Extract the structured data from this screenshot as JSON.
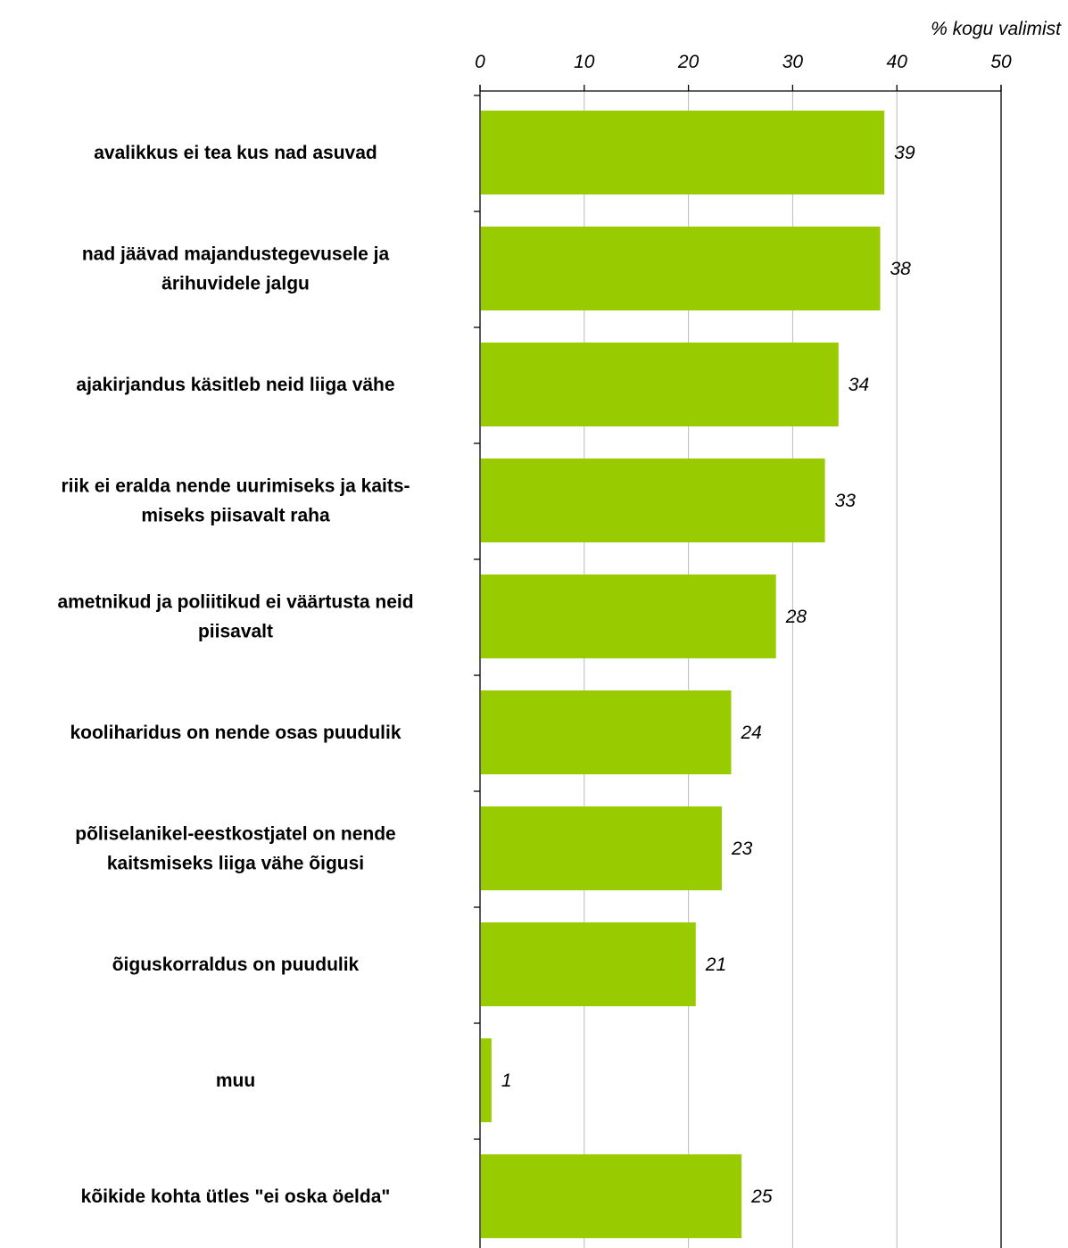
{
  "chart_data": {
    "type": "bar",
    "orientation": "horizontal",
    "title": "",
    "xlabel": "% kogu valimist",
    "ylabel": "",
    "xlim": [
      0,
      50
    ],
    "ticks": [
      0,
      10,
      20,
      30,
      40,
      50
    ],
    "tick_labels": [
      "0",
      "10",
      "20",
      "30",
      "40",
      "50"
    ],
    "grid": true,
    "axis_position": "top",
    "bar_color": "#99cc00",
    "categories": [
      [
        "avalikkus ei tea kus nad asuvad"
      ],
      [
        "nad jäävad majandustegevusele ja",
        "ärihuvidele jalgu"
      ],
      [
        "ajakirjandus käsitleb neid liiga vähe"
      ],
      [
        "riik ei eralda nende uurimiseks ja kaits-",
        "miseks piisavalt raha"
      ],
      [
        "ametnikud ja poliitikud ei väärtusta neid",
        "piisavalt"
      ],
      [
        "kooliharidus on nende osas puudulik"
      ],
      [
        "põliselanikel-eestkostjatel on nende",
        "kaitsmiseks liiga vähe õigusi"
      ],
      [
        "õiguskorraldus on puudulik"
      ],
      [
        "muu"
      ],
      [
        "kõikide kohta ütles \"ei oska öelda\""
      ]
    ],
    "values": [
      38.8,
      38.4,
      34.4,
      33.1,
      28.4,
      24.1,
      23.2,
      20.7,
      1.1,
      25.1
    ],
    "value_labels": [
      "39",
      "38",
      "34",
      "33",
      "28",
      "24",
      "23",
      "21",
      "1",
      "25"
    ]
  }
}
